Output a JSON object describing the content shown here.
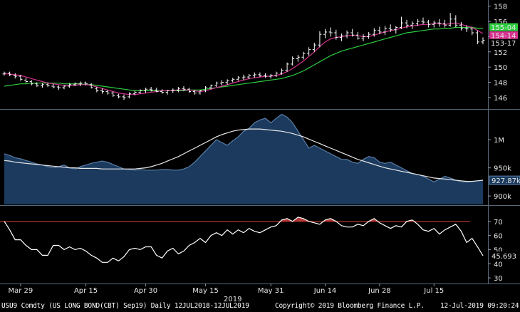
{
  "footer": {
    "security": "USU9 Comdty (US LONG BOND(CBT) Sep19)  Daily 12JUL2018-12JUL2019",
    "copyright": "Copyright© 2019 Bloomberg Finance L.P.",
    "timestamp": "12-Jul-2019 09:20:24"
  },
  "chart_data": [
    {
      "type": "ohlc",
      "panel": "price",
      "y_ticks": [
        146,
        148,
        150,
        152,
        154,
        156,
        158
      ],
      "ylim": [
        144.6,
        158.8
      ],
      "last_value_labels": [
        {
          "text": "155-04",
          "color": "#2ecc40"
        },
        {
          "text": "154-14",
          "color": "#d6318f"
        },
        {
          "text": "153-17",
          "color": "#ffffff"
        }
      ],
      "colors": {
        "bars": "#ffffff",
        "ma_fast": "#d6318f",
        "ma_slow": "#2ecc40"
      },
      "bars": [
        [
          149.1,
          149.4,
          148.9,
          149.2
        ],
        [
          149.2,
          149.4,
          148.8,
          149.0
        ],
        [
          148.9,
          149.2,
          148.5,
          148.8
        ],
        [
          148.8,
          149.0,
          148.2,
          148.4
        ],
        [
          148.3,
          148.6,
          147.9,
          148.1
        ],
        [
          148.1,
          148.3,
          147.6,
          147.8
        ],
        [
          147.8,
          148.0,
          147.4,
          147.6
        ],
        [
          147.6,
          147.9,
          147.3,
          147.7
        ],
        [
          147.7,
          148.0,
          147.4,
          147.6
        ],
        [
          147.5,
          147.8,
          147.2,
          147.4
        ],
        [
          147.4,
          147.6,
          147.0,
          147.3
        ],
        [
          147.3,
          147.6,
          147.1,
          147.5
        ],
        [
          147.5,
          147.9,
          147.3,
          147.7
        ],
        [
          147.7,
          148.0,
          147.5,
          147.8
        ],
        [
          147.8,
          148.1,
          147.5,
          147.9
        ],
        [
          147.9,
          148.1,
          147.6,
          147.8
        ],
        [
          147.7,
          147.9,
          147.2,
          147.3
        ],
        [
          147.2,
          147.4,
          146.7,
          146.9
        ],
        [
          146.9,
          147.2,
          146.5,
          146.8
        ],
        [
          146.8,
          147.0,
          146.4,
          146.6
        ],
        [
          146.6,
          146.8,
          146.1,
          146.3
        ],
        [
          146.3,
          146.5,
          145.9,
          146.1
        ],
        [
          146.1,
          146.4,
          145.7,
          146.0
        ],
        [
          146.1,
          146.7,
          145.9,
          146.5
        ],
        [
          146.5,
          146.9,
          146.3,
          146.7
        ],
        [
          146.7,
          147.1,
          146.5,
          146.9
        ],
        [
          146.9,
          147.3,
          146.6,
          147.1
        ],
        [
          147.1,
          147.4,
          146.8,
          147.0
        ],
        [
          147.0,
          147.3,
          146.7,
          146.8
        ],
        [
          146.8,
          147.1,
          146.5,
          146.7
        ],
        [
          146.7,
          147.0,
          146.4,
          146.9
        ],
        [
          146.9,
          147.2,
          146.6,
          147.0
        ],
        [
          147.0,
          147.4,
          146.7,
          147.2
        ],
        [
          147.2,
          147.5,
          146.9,
          147.1
        ],
        [
          147.1,
          147.3,
          146.6,
          146.8
        ],
        [
          146.8,
          147.0,
          146.4,
          146.6
        ],
        [
          146.6,
          147.0,
          146.4,
          146.9
        ],
        [
          146.9,
          147.5,
          146.7,
          147.3
        ],
        [
          147.3,
          147.7,
          147.1,
          147.6
        ],
        [
          147.6,
          148.1,
          147.4,
          147.9
        ],
        [
          147.9,
          148.3,
          147.6,
          148.0
        ],
        [
          148.0,
          148.4,
          147.7,
          148.2
        ],
        [
          148.2,
          148.6,
          148.0,
          148.4
        ],
        [
          148.4,
          148.8,
          148.2,
          148.6
        ],
        [
          148.6,
          149.0,
          148.3,
          148.7
        ],
        [
          148.7,
          149.1,
          148.4,
          148.9
        ],
        [
          148.9,
          149.3,
          148.6,
          149.0
        ],
        [
          149.0,
          149.3,
          148.7,
          148.9
        ],
        [
          148.9,
          149.2,
          148.6,
          148.8
        ],
        [
          148.8,
          149.1,
          148.5,
          148.9
        ],
        [
          148.9,
          149.4,
          148.7,
          149.2
        ],
        [
          149.2,
          149.8,
          149.0,
          149.6
        ],
        [
          149.6,
          150.6,
          149.4,
          150.4
        ],
        [
          150.4,
          151.4,
          150.2,
          151.1
        ],
        [
          151.1,
          151.6,
          150.7,
          151.3
        ],
        [
          151.3,
          152.0,
          151.0,
          151.8
        ],
        [
          151.8,
          152.6,
          151.5,
          152.3
        ],
        [
          152.3,
          153.2,
          152.0,
          152.9
        ],
        [
          152.9,
          154.7,
          152.6,
          154.3
        ],
        [
          154.3,
          155.0,
          153.8,
          154.6
        ],
        [
          154.6,
          155.2,
          154.0,
          154.5
        ],
        [
          154.5,
          154.9,
          153.6,
          153.9
        ],
        [
          153.9,
          154.4,
          153.4,
          154.1
        ],
        [
          154.1,
          154.8,
          153.8,
          154.5
        ],
        [
          154.5,
          155.0,
          154.0,
          154.2
        ],
        [
          154.2,
          154.6,
          153.6,
          153.8
        ],
        [
          153.8,
          154.3,
          153.4,
          154.0
        ],
        [
          154.0,
          154.6,
          153.7,
          154.3
        ],
        [
          154.3,
          155.1,
          154.0,
          154.8
        ],
        [
          154.8,
          155.3,
          154.3,
          154.6
        ],
        [
          154.6,
          155.4,
          154.2,
          155.1
        ],
        [
          155.1,
          155.6,
          154.6,
          154.9
        ],
        [
          154.9,
          155.4,
          154.4,
          155.2
        ],
        [
          155.2,
          156.6,
          155.0,
          155.8
        ],
        [
          155.8,
          156.2,
          155.1,
          155.5
        ],
        [
          155.5,
          156.0,
          155.0,
          155.7
        ],
        [
          155.7,
          156.3,
          155.4,
          156.0
        ],
        [
          156.0,
          156.5,
          155.6,
          155.9
        ],
        [
          155.9,
          156.2,
          155.2,
          155.6
        ],
        [
          155.6,
          156.1,
          155.2,
          155.8
        ],
        [
          155.8,
          156.3,
          155.3,
          155.7
        ],
        [
          155.7,
          156.2,
          155.2,
          155.5
        ],
        [
          155.5,
          157.1,
          155.3,
          156.3
        ],
        [
          156.3,
          156.8,
          155.2,
          155.5
        ],
        [
          155.5,
          155.9,
          154.8,
          155.1
        ],
        [
          155.1,
          155.5,
          154.6,
          155.0
        ],
        [
          155.0,
          155.3,
          154.2,
          154.5
        ],
        [
          154.5,
          154.8,
          153.0,
          153.3
        ],
        [
          153.3,
          153.9,
          153.0,
          153.5
        ]
      ],
      "ma_fast": [
        149.1,
        149.1,
        149.0,
        148.9,
        148.7,
        148.5,
        148.3,
        148.1,
        147.9,
        147.8,
        147.7,
        147.6,
        147.6,
        147.6,
        147.7,
        147.7,
        147.6,
        147.4,
        147.2,
        147.0,
        146.8,
        146.6,
        146.5,
        146.4,
        146.4,
        146.5,
        146.6,
        146.7,
        146.8,
        146.9,
        146.9,
        146.9,
        147.0,
        147.0,
        147.0,
        146.9,
        146.8,
        146.9,
        147.1,
        147.3,
        147.5,
        147.7,
        147.9,
        148.1,
        148.3,
        148.5,
        148.6,
        148.7,
        148.8,
        148.8,
        148.9,
        149.1,
        149.4,
        149.8,
        150.3,
        150.8,
        151.4,
        152.0,
        152.7,
        153.3,
        153.7,
        153.9,
        154.0,
        154.1,
        154.2,
        154.1,
        154.0,
        154.0,
        154.2,
        154.4,
        154.6,
        154.8,
        154.9,
        155.1,
        155.3,
        155.4,
        155.5,
        155.6,
        155.6,
        155.7,
        155.7,
        155.6,
        155.7,
        155.8,
        155.6,
        155.4,
        155.2,
        154.8,
        154.4
      ],
      "ma_slow_start": 0,
      "ma_slow": [
        147.5,
        147.6,
        147.7,
        147.8,
        147.8,
        147.9,
        147.9,
        147.9,
        147.9,
        147.9,
        147.9,
        147.8,
        147.8,
        147.8,
        147.8,
        147.7,
        147.7,
        147.6,
        147.5,
        147.4,
        147.3,
        147.2,
        147.1,
        147.0,
        146.9,
        146.9,
        146.9,
        146.9,
        146.9,
        146.9,
        146.9,
        146.9,
        146.9,
        146.9,
        147.0,
        147.0,
        147.0,
        147.1,
        147.2,
        147.3,
        147.4,
        147.5,
        147.6,
        147.7,
        147.8,
        147.9,
        148.0,
        148.1,
        148.2,
        148.3,
        148.4,
        148.5,
        148.7,
        148.9,
        149.2,
        149.5,
        149.9,
        150.3,
        150.7,
        151.1,
        151.5,
        151.8,
        152.1,
        152.3,
        152.5,
        152.7,
        152.9,
        153.1,
        153.3,
        153.5,
        153.7,
        153.9,
        154.1,
        154.3,
        154.5,
        154.6,
        154.7,
        154.8,
        154.9,
        155.0,
        155.0,
        155.1,
        155.1,
        155.2,
        155.2,
        155.2,
        155.2,
        155.1,
        155.1
      ]
    },
    {
      "type": "area",
      "panel": "open-interest",
      "y_ticks": [
        {
          "value": 900000,
          "label": "900k"
        },
        {
          "value": 950000,
          "label": "950k"
        },
        {
          "value": 1000000,
          "label": "1M"
        }
      ],
      "ylim": [
        885000,
        1052000
      ],
      "last_value_label": "927.87k",
      "colors": {
        "area": "#1b3a5e",
        "area_line": "#5b7fa8",
        "ma": "#e8e8e8"
      },
      "values": [
        975000,
        972000,
        968000,
        966000,
        963000,
        960000,
        957000,
        955000,
        952000,
        950000,
        952000,
        955000,
        950000,
        948000,
        952000,
        955000,
        958000,
        960000,
        962000,
        960000,
        956000,
        952000,
        948000,
        947000,
        946000,
        947000,
        946000,
        946000,
        946000,
        947000,
        947000,
        946000,
        946000,
        948000,
        952000,
        960000,
        970000,
        980000,
        990000,
        1000000,
        995000,
        990000,
        998000,
        1005000,
        1015000,
        1020000,
        1030000,
        1035000,
        1038000,
        1030000,
        1038000,
        1045000,
        1040000,
        1030000,
        1015000,
        1000000,
        985000,
        990000,
        985000,
        980000,
        975000,
        970000,
        965000,
        965000,
        960000,
        958000,
        965000,
        970000,
        968000,
        960000,
        958000,
        960000,
        955000,
        950000,
        945000,
        940000,
        938000,
        935000,
        930000,
        925000,
        930000,
        935000,
        932000,
        928000,
        925000,
        925000,
        926000,
        927000,
        927870
      ],
      "ma": [
        963000,
        962000,
        960000,
        959000,
        958000,
        957000,
        956000,
        955000,
        954000,
        953000,
        952000,
        951000,
        950000,
        950000,
        949000,
        949000,
        949000,
        949000,
        948000,
        948000,
        948000,
        948000,
        948000,
        948000,
        948000,
        949000,
        950000,
        952000,
        955000,
        958000,
        962000,
        966000,
        970000,
        975000,
        980000,
        985000,
        990000,
        995000,
        1000000,
        1005000,
        1009000,
        1012000,
        1015000,
        1017000,
        1018000,
        1019000,
        1019000,
        1019000,
        1018000,
        1017000,
        1016000,
        1015000,
        1013000,
        1011000,
        1008000,
        1005000,
        1001000,
        997000,
        993000,
        989000,
        985000,
        981000,
        977000,
        973000,
        969000,
        965000,
        962000,
        959000,
        956000,
        953000,
        950000,
        948000,
        946000,
        944000,
        942000,
        940000,
        938000,
        936000,
        934000,
        932000,
        931000,
        930000,
        929000,
        928000,
        927000,
        926000,
        926000,
        927000,
        928000
      ]
    },
    {
      "type": "line",
      "panel": "rsi",
      "y_ticks": [
        30,
        40,
        50,
        60,
        70
      ],
      "ylim": [
        26,
        80.5
      ],
      "overbought": 70,
      "last_value_label": "45.693",
      "colors": {
        "line": "#ffffff",
        "overbought_line": "#c0392b",
        "overbought_fill": "#b03a3a"
      },
      "values": [
        70,
        64,
        57,
        57,
        53,
        50,
        50,
        46,
        46,
        53,
        53,
        50,
        52,
        50,
        51,
        49,
        46,
        44,
        41,
        41,
        44,
        42,
        45,
        50,
        51,
        50,
        52,
        52,
        46,
        44,
        49,
        51,
        47,
        49,
        53,
        55,
        58,
        55,
        60,
        62,
        60,
        64,
        61,
        64,
        62,
        65,
        63,
        62,
        64,
        66,
        67,
        71,
        72,
        70,
        73,
        72,
        70,
        69,
        68,
        71,
        72,
        70,
        67,
        66,
        66,
        68,
        67,
        70,
        72,
        69,
        67,
        65,
        67,
        66,
        70,
        71,
        68,
        64,
        63,
        65,
        61,
        64,
        66,
        68,
        63,
        55,
        58,
        52,
        45.7
      ]
    }
  ],
  "x_axis": {
    "labels": [
      {
        "text": "Mar 29",
        "index": 3
      },
      {
        "text": "Apr 15",
        "index": 15
      },
      {
        "text": "Apr 30",
        "index": 26
      },
      {
        "text": "May 15",
        "index": 37
      },
      {
        "text": "May 31",
        "index": 49
      },
      {
        "text": "Jun 14",
        "index": 59
      },
      {
        "text": "Jun 28",
        "index": 69
      },
      {
        "text": "Jul 15",
        "index": 79
      }
    ],
    "year_label": {
      "text": "2019",
      "index": 42
    }
  }
}
